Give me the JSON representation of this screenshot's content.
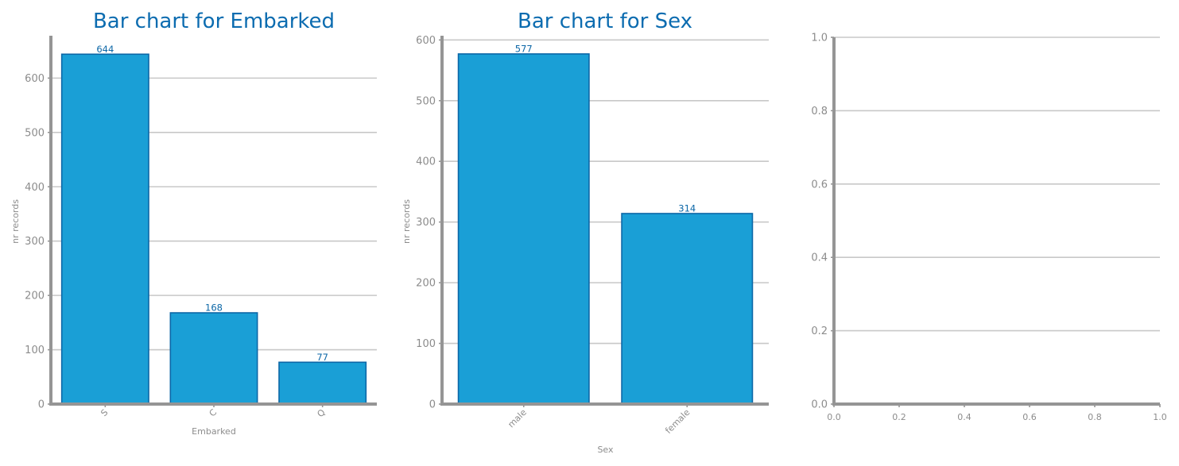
{
  "colors": {
    "bar_fill": "#1a9fd6",
    "bar_edge": "#0c67a7",
    "title": "#0c6cb0",
    "axis": "#959595",
    "grid": "#c8c8c8",
    "tick_text": "#8c8c8c",
    "bar_label": "#0c67a7"
  },
  "chart_data": [
    {
      "type": "bar",
      "title": "Bar chart for Embarked",
      "xlabel": "Embarked",
      "ylabel": "nr records",
      "categories": [
        "S",
        "C",
        "Q"
      ],
      "values": [
        644,
        168,
        77
      ],
      "ylim": [
        0,
        678
      ],
      "yticks": [
        0,
        100,
        200,
        300,
        400,
        500,
        600
      ],
      "grid": "horizontal",
      "xtick_rotation": 45
    },
    {
      "type": "bar",
      "title": "Bar chart for Sex",
      "xlabel": "Sex",
      "ylabel": "nr records",
      "categories": [
        "male",
        "female"
      ],
      "values": [
        577,
        314
      ],
      "ylim": [
        0,
        607
      ],
      "yticks": [
        0,
        100,
        200,
        300,
        400,
        500,
        600
      ],
      "grid": "horizontal",
      "xtick_rotation": 45
    },
    {
      "type": "bar",
      "title": "",
      "xlabel": "",
      "ylabel": "",
      "categories": [],
      "values": [],
      "xlim": [
        0.0,
        1.0
      ],
      "ylim": [
        0.0,
        1.0
      ],
      "xticks": [
        "0.0",
        "0.2",
        "0.4",
        "0.6",
        "0.8",
        "1.0"
      ],
      "yticks": [
        "0.0",
        "0.2",
        "0.4",
        "0.6",
        "0.8",
        "1.0"
      ],
      "grid": "horizontal"
    }
  ]
}
